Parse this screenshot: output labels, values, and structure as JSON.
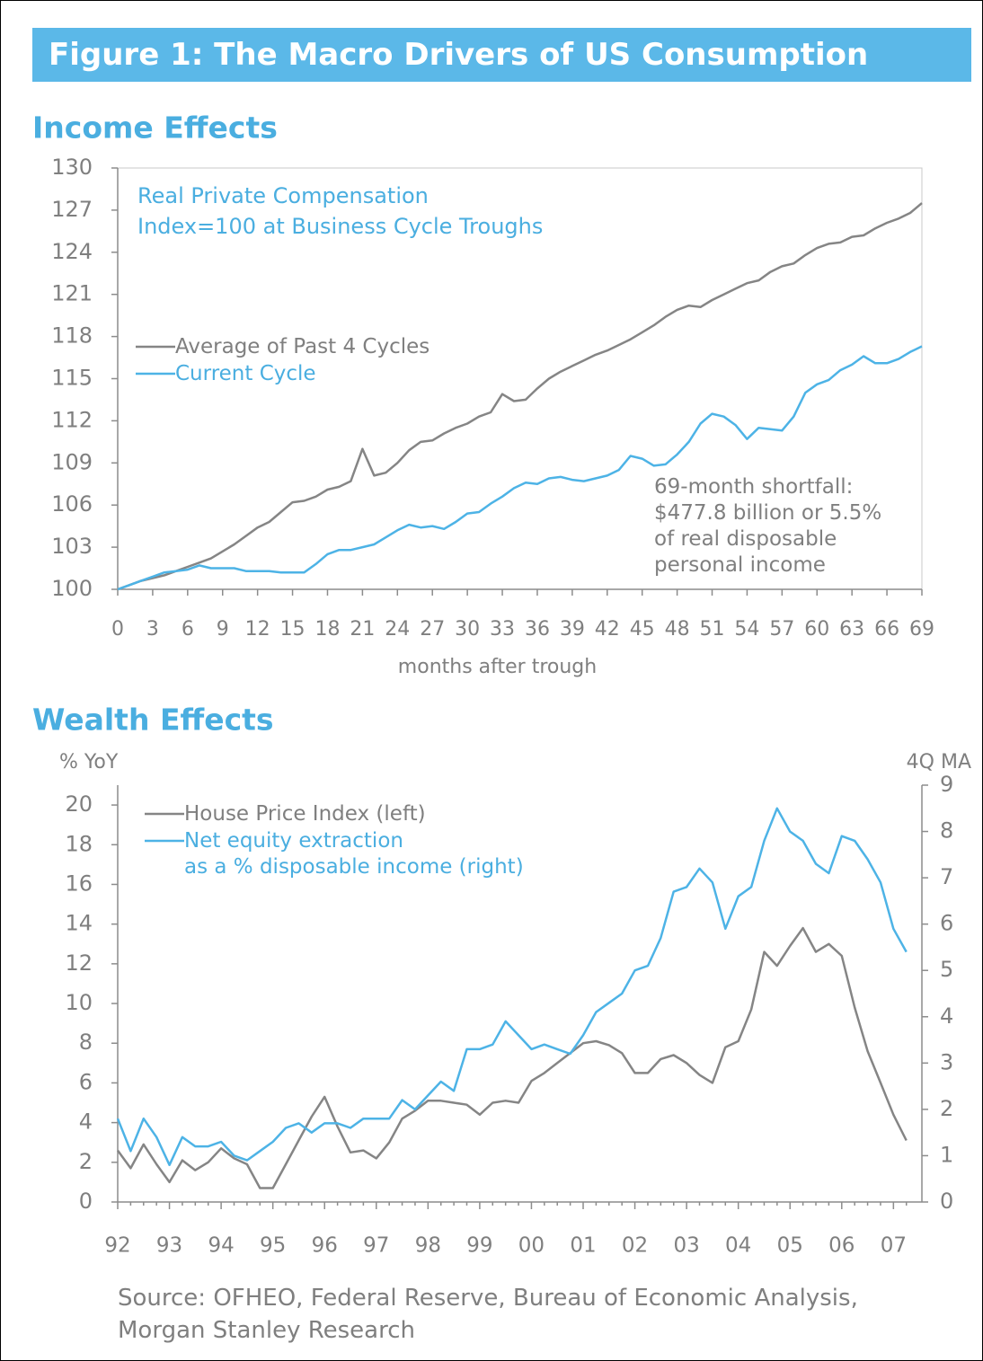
{
  "title": "Figure 1: The Macro Drivers of US Consumption",
  "source": "Source: OFHEO, Federal Reserve, Bureau of Economic Analysis,\nMorgan Stanley Research",
  "chart_data": [
    {
      "type": "line",
      "title": "Income Effects",
      "subtitle": "Real Private Compensation\nIndex=100 at Business Cycle Troughs",
      "xlabel": "months after trough",
      "annotation": "69-month shortfall:\n$477.8 billion or 5.5%\nof real disposable\npersonal income",
      "x": [
        0,
        1,
        2,
        3,
        4,
        5,
        6,
        7,
        8,
        9,
        10,
        11,
        12,
        13,
        14,
        15,
        16,
        17,
        18,
        19,
        20,
        21,
        22,
        23,
        24,
        25,
        26,
        27,
        28,
        29,
        30,
        31,
        32,
        33,
        34,
        35,
        36,
        37,
        38,
        39,
        40,
        41,
        42,
        43,
        44,
        45,
        46,
        47,
        48,
        49,
        50,
        51,
        52,
        53,
        54,
        55,
        56,
        57,
        58,
        59,
        60,
        61,
        62,
        63,
        64,
        65,
        66,
        67,
        68,
        69
      ],
      "xlim": [
        0,
        69
      ],
      "xticks": [
        0,
        3,
        6,
        9,
        12,
        15,
        18,
        21,
        24,
        27,
        30,
        33,
        36,
        39,
        42,
        45,
        48,
        51,
        54,
        57,
        60,
        63,
        66,
        69
      ],
      "ylim": [
        100,
        130
      ],
      "yticks": [
        100,
        103,
        106,
        109,
        112,
        115,
        118,
        121,
        124,
        127,
        130
      ],
      "legend": "center left",
      "series": [
        {
          "name": "Average of Past 4 Cycles",
          "color": "#858585",
          "values": [
            100,
            100.3,
            100.6,
            100.8,
            101,
            101.3,
            101.6,
            101.9,
            102.2,
            102.7,
            103.2,
            103.8,
            104.4,
            104.8,
            105.5,
            106.2,
            106.3,
            106.6,
            107.1,
            107.3,
            107.7,
            110.0,
            108.1,
            108.3,
            109.0,
            109.9,
            110.5,
            110.6,
            111.1,
            111.5,
            111.8,
            112.3,
            112.6,
            113.9,
            113.4,
            113.5,
            114.3,
            115.0,
            115.5,
            115.9,
            116.3,
            116.7,
            117.0,
            117.4,
            117.8,
            118.3,
            118.8,
            119.4,
            119.9,
            120.2,
            120.1,
            120.6,
            121.0,
            121.4,
            121.8,
            122.0,
            122.6,
            123.0,
            123.2,
            123.8,
            124.3,
            124.6,
            124.7,
            125.1,
            125.2,
            125.7,
            126.1,
            126.4,
            126.8,
            127.5
          ]
        },
        {
          "name": "Current Cycle",
          "color": "#4db3e6",
          "values": [
            100,
            100.3,
            100.6,
            100.9,
            101.2,
            101.3,
            101.4,
            101.7,
            101.5,
            101.5,
            101.5,
            101.3,
            101.3,
            101.3,
            101.2,
            101.2,
            101.2,
            101.8,
            102.5,
            102.8,
            102.8,
            103.0,
            103.2,
            103.7,
            104.2,
            104.6,
            104.4,
            104.5,
            104.3,
            104.8,
            105.4,
            105.5,
            106.1,
            106.6,
            107.2,
            107.6,
            107.5,
            107.9,
            108.0,
            107.8,
            107.7,
            107.9,
            108.1,
            108.5,
            109.5,
            109.3,
            108.8,
            108.9,
            109.6,
            110.5,
            111.8,
            112.5,
            112.3,
            111.7,
            110.7,
            111.5,
            111.4,
            111.3,
            112.3,
            114.0,
            114.6,
            114.9,
            115.6,
            116.0,
            116.6,
            116.1,
            116.1,
            116.4,
            116.9,
            117.3
          ]
        }
      ]
    },
    {
      "type": "line",
      "title": "Wealth Effects",
      "ylabel": "% YoY",
      "y2label": "4Q MA",
      "categories": [
        "92",
        null,
        null,
        null,
        "93",
        null,
        null,
        null,
        "94",
        null,
        null,
        null,
        "95",
        null,
        null,
        null,
        "96",
        null,
        null,
        null,
        "97",
        null,
        null,
        null,
        "98",
        null,
        null,
        null,
        "99",
        null,
        null,
        null,
        "00",
        null,
        null,
        null,
        "01",
        null,
        null,
        null,
        "02",
        null,
        null,
        null,
        "03",
        null,
        null,
        null,
        "04",
        null,
        null,
        null,
        "05",
        null,
        null,
        null,
        "06",
        null,
        null,
        null,
        "07",
        null
      ],
      "ylim": [
        0,
        21
      ],
      "yticks": [
        0,
        2,
        4,
        6,
        8,
        10,
        12,
        14,
        16,
        18,
        20
      ],
      "y2lim": [
        0,
        9
      ],
      "y2ticks": [
        0,
        1,
        2,
        3,
        4,
        5,
        6,
        7,
        8,
        9
      ],
      "legend": "upper left",
      "series": [
        {
          "name": "House Price Index (left)",
          "color": "#858585",
          "values": [
            2.6,
            1.7,
            2.9,
            1.9,
            1.0,
            2.1,
            1.6,
            2.0,
            2.7,
            2.2,
            1.9,
            0.7,
            0.7,
            1.9,
            3.1,
            4.3,
            5.3,
            3.8,
            2.5,
            2.6,
            2.2,
            3.0,
            4.2,
            4.6,
            5.1,
            5.1,
            5.0,
            4.9,
            4.4,
            5.0,
            5.1,
            5.0,
            6.1,
            6.5,
            7.0,
            7.5,
            8.0,
            8.1,
            7.9,
            7.5,
            6.5,
            6.5,
            7.2,
            7.4,
            7.0,
            6.4,
            6.0,
            7.8,
            8.1,
            9.7,
            12.6,
            11.9,
            12.9,
            13.8,
            12.6,
            13.0,
            12.4,
            9.8,
            7.6,
            6.0,
            4.4,
            3.1
          ]
        },
        {
          "name": "Net equity extraction\nas a % disposable income (right)",
          "color": "#4db3e6",
          "axis": "y2",
          "values": [
            1.8,
            1.1,
            1.8,
            1.4,
            0.8,
            1.4,
            1.2,
            1.2,
            1.3,
            1.0,
            0.9,
            1.1,
            1.3,
            1.6,
            1.7,
            1.5,
            1.7,
            1.7,
            1.6,
            1.8,
            1.8,
            1.8,
            2.2,
            2.0,
            2.3,
            2.6,
            2.4,
            3.3,
            3.3,
            3.4,
            3.9,
            3.6,
            3.3,
            3.4,
            3.3,
            3.2,
            3.6,
            4.1,
            4.3,
            4.5,
            5.0,
            5.1,
            5.7,
            6.7,
            6.8,
            7.2,
            6.9,
            5.9,
            6.6,
            6.8,
            7.8,
            8.5,
            8.0,
            7.8,
            7.3,
            7.1,
            7.9,
            7.8,
            7.4,
            6.9,
            5.9,
            5.4
          ]
        }
      ]
    }
  ]
}
